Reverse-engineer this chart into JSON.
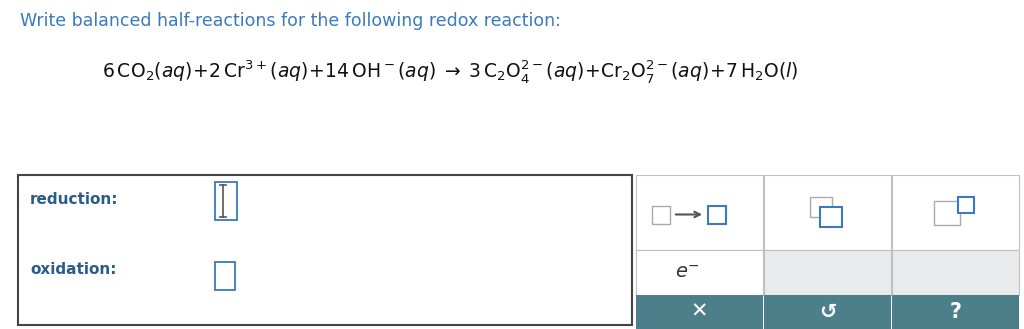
{
  "title_text": "Write balanced half-reactions for the following redox reaction:",
  "title_color": "#3a7abf",
  "title_fontsize": 12.5,
  "bg_color": "#ffffff",
  "reduction_label": "reduction:",
  "oxidation_label": "oxidation:",
  "teal_color": "#4d7f8a",
  "label_color": "#2a5c8a",
  "box_edge_color": "#444444",
  "input_box_color": "#3a7abf",
  "panel_gray": "#e8eaec"
}
